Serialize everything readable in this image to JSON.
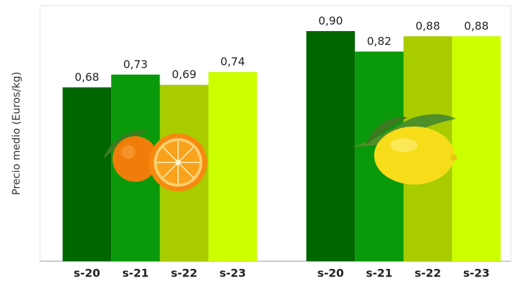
{
  "chart_data": {
    "type": "bar",
    "ylabel": "Precio medio (Euros/kg)",
    "categories": [
      null,
      null
    ],
    "series": [
      {
        "name": "s-20",
        "color": "#006600",
        "values": [
          0.68,
          0.9
        ],
        "value_labels": [
          "0,68",
          "0,90"
        ]
      },
      {
        "name": "s-21",
        "color": "#0a990a",
        "values": [
          0.73,
          0.82
        ],
        "value_labels": [
          "0,73",
          "0,82"
        ]
      },
      {
        "name": "s-22",
        "color": "#a8cc00",
        "values": [
          0.69,
          0.88
        ],
        "value_labels": [
          "0,69",
          "0,88"
        ]
      },
      {
        "name": "s-23",
        "color": "#ccff00",
        "values": [
          0.74,
          0.88
        ],
        "value_labels": [
          "0,74",
          "0,88"
        ]
      }
    ],
    "ylim": [
      0,
      1
    ]
  }
}
